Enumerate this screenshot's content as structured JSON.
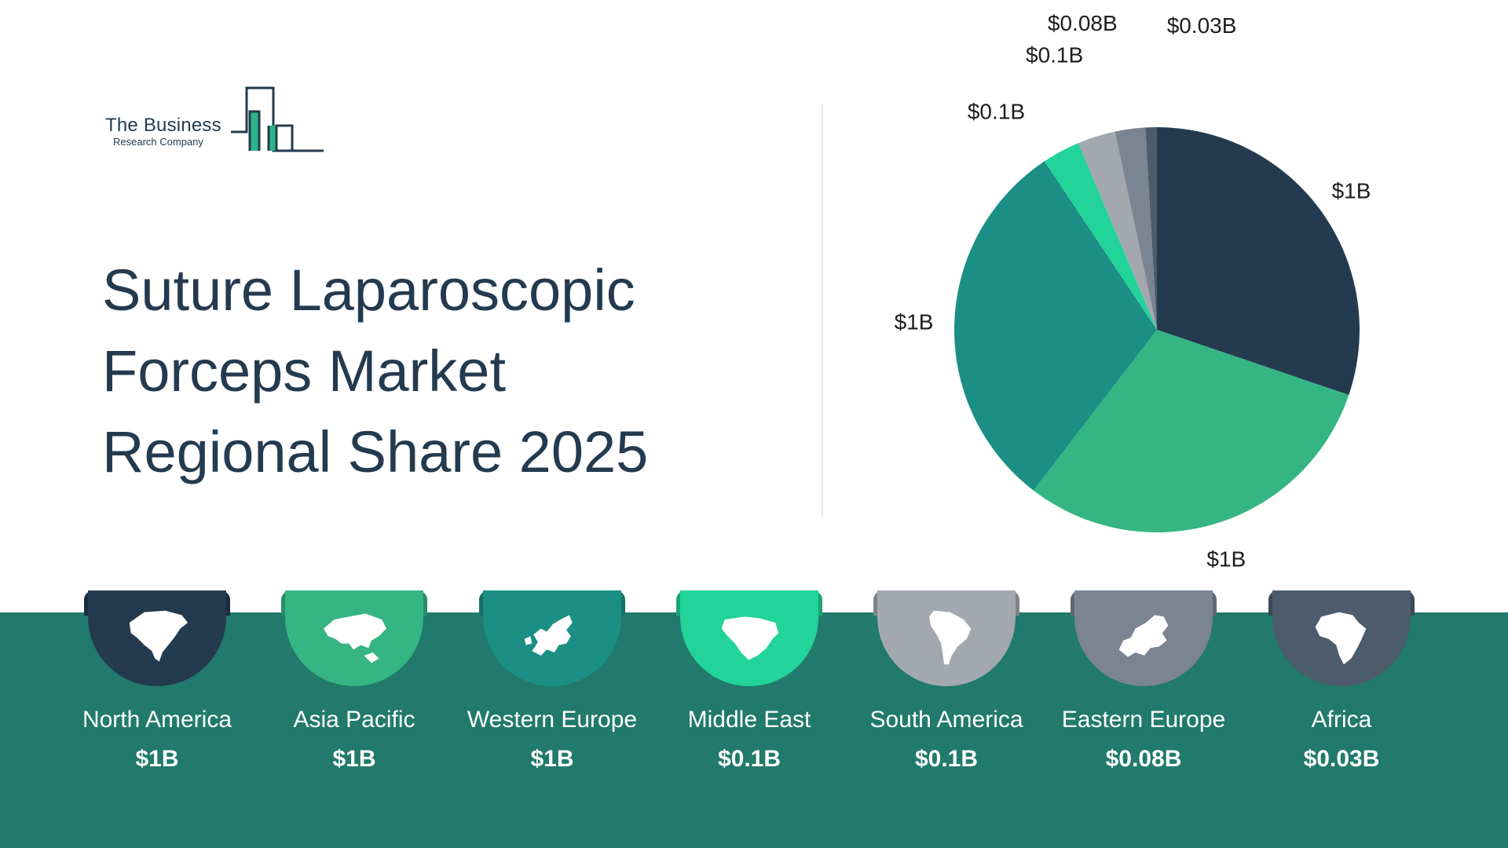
{
  "logo": {
    "line1": "The Business",
    "line2": "Research Company"
  },
  "title": {
    "line1": "Suture Laparoscopic",
    "line2": "Forceps Market",
    "line3": "Regional Share 2025"
  },
  "chart_data": {
    "type": "pie",
    "title": "Suture Laparoscopic Forceps Market Regional Share 2025",
    "unit": "$B",
    "slices": [
      {
        "name": "North America",
        "value": 1,
        "label": "$1B",
        "color": "#243a4f"
      },
      {
        "name": "Asia Pacific",
        "value": 1,
        "label": "$1B",
        "color": "#35b584"
      },
      {
        "name": "Western Europe",
        "value": 1,
        "label": "$1B",
        "color": "#1b8f84"
      },
      {
        "name": "Middle East",
        "value": 0.1,
        "label": "$0.1B",
        "color": "#22d39a"
      },
      {
        "name": "South America",
        "value": 0.1,
        "label": "$0.1B",
        "color": "#a3a8b0"
      },
      {
        "name": "Eastern Europe",
        "value": 0.08,
        "label": "$0.08B",
        "color": "#7b8491"
      },
      {
        "name": "Africa",
        "value": 0.03,
        "label": "$0.03B",
        "color": "#4c5c6c"
      }
    ]
  },
  "regions": [
    {
      "name": "North America",
      "value": "$1B",
      "color": "#243a4f",
      "icon": "north-america-map-icon"
    },
    {
      "name": "Asia Pacific",
      "value": "$1B",
      "color": "#35b584",
      "icon": "asia-pacific-map-icon"
    },
    {
      "name": "Western Europe",
      "value": "$1B",
      "color": "#1b8f84",
      "icon": "western-europe-map-icon"
    },
    {
      "name": "Middle East",
      "value": "$0.1B",
      "color": "#22d39a",
      "icon": "middle-east-map-icon"
    },
    {
      "name": "South America",
      "value": "$0.1B",
      "color": "#a3a8b0",
      "icon": "south-america-map-icon"
    },
    {
      "name": "Eastern Europe",
      "value": "$0.08B",
      "color": "#7b8491",
      "icon": "eastern-europe-map-icon"
    },
    {
      "name": "Africa",
      "value": "$0.03B",
      "color": "#4c5c6c",
      "icon": "africa-map-icon"
    }
  ]
}
